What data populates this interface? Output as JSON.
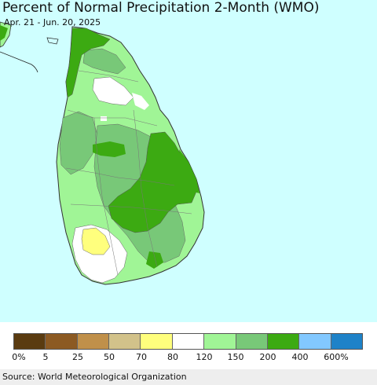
{
  "header": {
    "title": "Percent of Normal Precipitation 2-Month (WMO)",
    "subtitle": "Apr. 21 - Jun. 20, 2025"
  },
  "map": {
    "sea_color": "#cfffff",
    "region": "Sri Lanka"
  },
  "legend": {
    "colors": [
      "#5a3b10",
      "#8c5a23",
      "#c0904a",
      "#d2c28a",
      "#ffff7d",
      "#ffffff",
      "#a0f596",
      "#78c878",
      "#3caa12",
      "#82c8ff",
      "#1e82c8"
    ],
    "labels": [
      "0%",
      "5",
      "25",
      "50",
      "70",
      "80",
      "120",
      "150",
      "200",
      "400",
      "600%"
    ]
  },
  "footer": {
    "source": "Source: World Meteorological Organization"
  }
}
